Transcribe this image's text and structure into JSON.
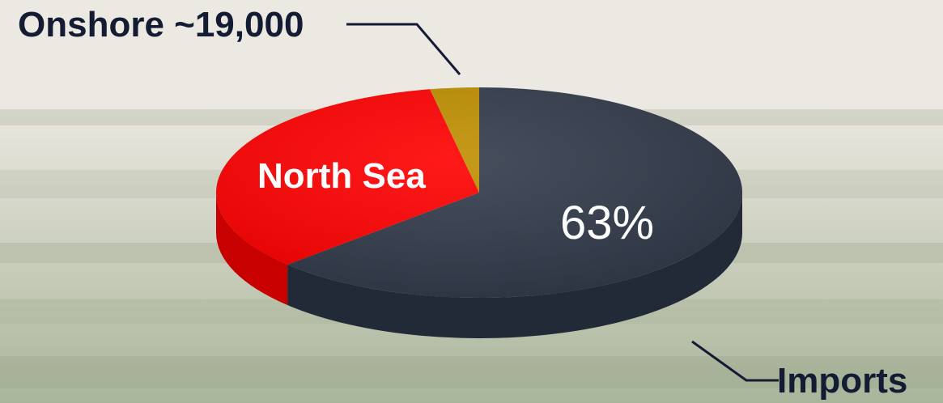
{
  "background": {
    "sky": "#ece9e2",
    "field": "#a9b59a",
    "tree": "#8f9a7f"
  },
  "chart_data": {
    "type": "pie",
    "style": "3d-exploded-tilted",
    "slices": [
      {
        "name": "Imports",
        "value": 63,
        "color": "#323b4b",
        "side_color": "#222a37"
      },
      {
        "name": "North Sea",
        "value": 34,
        "color": "#ff0000",
        "side_color": "#c80000"
      },
      {
        "name": "Onshore",
        "value": 3,
        "color": "#bf8f00",
        "side_color": "#8a6700"
      }
    ],
    "labels": {
      "onshore": "Onshore ~19,000",
      "north_sea": "North Sea",
      "imports_pct": "63%",
      "imports": "Imports"
    },
    "legend": "none"
  }
}
